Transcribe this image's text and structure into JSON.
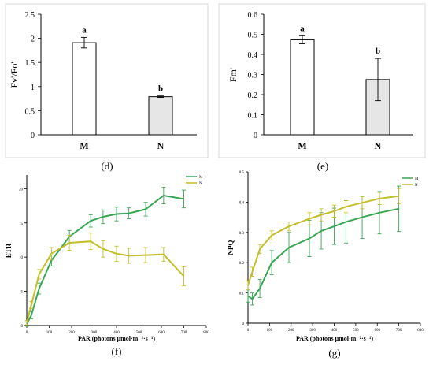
{
  "chart_data": [
    {
      "panel": "(d)",
      "type": "bar",
      "ylabel": "Fv'/Fo'",
      "categories": [
        "M",
        "N"
      ],
      "values": [
        1.91,
        0.79
      ],
      "errors": [
        0.11,
        0.015
      ],
      "letters": [
        "a",
        "b"
      ],
      "yticks": [
        "0",
        "0.5",
        "1",
        "1.5",
        "2",
        "2.5"
      ],
      "ylim": [
        0,
        2.5
      ],
      "colors": [
        "#ffffff",
        "#e6e6e6"
      ]
    },
    {
      "panel": "(e)",
      "type": "bar",
      "ylabel": "Fm'",
      "categories": [
        "M",
        "N"
      ],
      "values": [
        0.473,
        0.275
      ],
      "errors": [
        0.02,
        0.105
      ],
      "letters": [
        "a",
        "b"
      ],
      "yticks": [
        "0",
        "0.1",
        "0.2",
        "0.3",
        "0.4",
        "0.5",
        "0.6"
      ],
      "ylim": [
        0,
        0.6
      ],
      "colors": [
        "#ffffff",
        "#e6e6e6"
      ]
    },
    {
      "panel": "(f)",
      "type": "line",
      "xlabel": "PAR (photons μmol·m⁻²·s⁻¹)",
      "ylabel": "ETR",
      "xticks": [
        "0",
        "100",
        "200",
        "300",
        "400",
        "500",
        "600",
        "700",
        "800"
      ],
      "yticks": [
        "0",
        "5",
        "10",
        "15",
        "20"
      ],
      "xlim": [
        0,
        800
      ],
      "ylim": [
        0,
        22
      ],
      "x": [
        0,
        20,
        55,
        110,
        190,
        285,
        340,
        400,
        455,
        530,
        610,
        700
      ],
      "series": [
        {
          "name": "M",
          "color": "#3aa655",
          "values": [
            0.2,
            1.5,
            5.4,
            9.5,
            13.0,
            15.3,
            15.9,
            16.3,
            16.4,
            17.0,
            19.0,
            18.5
          ],
          "errors": [
            0.3,
            0.5,
            0.8,
            0.8,
            0.9,
            0.9,
            1.0,
            1.0,
            0.8,
            1.0,
            1.2,
            1.3
          ]
        },
        {
          "name": "N",
          "color": "#c2bf2a",
          "values": [
            0.4,
            3.0,
            7.5,
            10.5,
            12.1,
            12.3,
            11.2,
            10.5,
            10.2,
            10.3,
            10.4,
            7.2
          ],
          "errors": [
            0.3,
            0.5,
            0.7,
            0.9,
            1.1,
            1.2,
            1.2,
            1.1,
            1.1,
            1.1,
            1.0,
            1.4
          ]
        }
      ]
    },
    {
      "panel": "(g)",
      "type": "line",
      "xlabel": "PAR (photons μmol·m⁻²·s⁻¹)",
      "ylabel": "NPQ",
      "xticks": [
        "0",
        "100",
        "200",
        "300",
        "400",
        "500",
        "600",
        "700",
        "800"
      ],
      "yticks": [
        "0",
        "0.1",
        "0.2",
        "0.3",
        "0.4",
        "0.5"
      ],
      "xlim": [
        0,
        800
      ],
      "ylim": [
        0,
        0.5
      ],
      "x": [
        0,
        20,
        55,
        110,
        190,
        285,
        340,
        400,
        455,
        530,
        610,
        700
      ],
      "series": [
        {
          "name": "M",
          "color": "#3aa655",
          "values": [
            0.09,
            0.08,
            0.115,
            0.2,
            0.25,
            0.28,
            0.305,
            0.32,
            0.335,
            0.35,
            0.365,
            0.378
          ],
          "errors": [
            0.02,
            0.02,
            0.03,
            0.04,
            0.05,
            0.06,
            0.06,
            0.06,
            0.07,
            0.07,
            0.07,
            0.075
          ]
        },
        {
          "name": "N",
          "color": "#c2bf2a",
          "values": [
            0.125,
            0.17,
            0.245,
            0.29,
            0.32,
            0.345,
            0.358,
            0.37,
            0.385,
            0.398,
            0.412,
            0.42
          ],
          "errors": [
            0.015,
            0.015,
            0.015,
            0.015,
            0.015,
            0.02,
            0.02,
            0.02,
            0.02,
            0.02,
            0.02,
            0.025
          ]
        }
      ]
    }
  ]
}
